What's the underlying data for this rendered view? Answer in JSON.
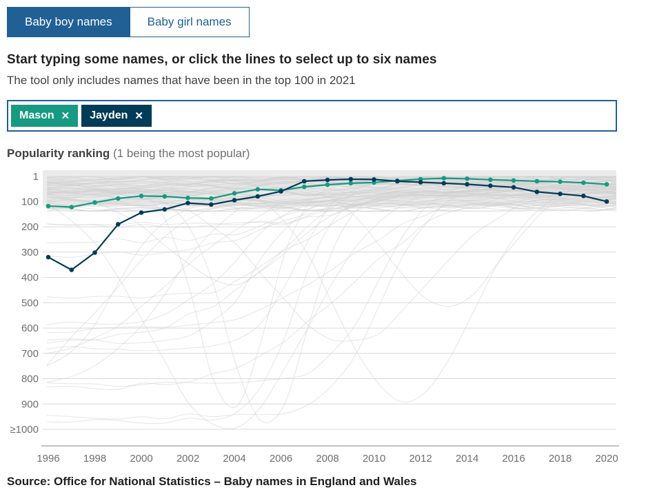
{
  "colors": {
    "accent_blue": "#206095",
    "mason_teal": "#169a81",
    "jayden_navy": "#003c57",
    "grid_gray": "#d9d9d9",
    "background_line_gray": "#cfcfcf",
    "axis_text_gray": "#6e6e6e"
  },
  "tabs": [
    {
      "label": "Baby boy names",
      "active": true
    },
    {
      "label": "Baby girl names",
      "active": false
    }
  ],
  "heading": "Start typing some names, or click the lines to select up to six names",
  "subheading": "The tool only includes names that have been in the top 100 in 2021",
  "name_picker": {
    "selected": [
      {
        "name": "Mason",
        "color": "#169a81",
        "remove_icon": "✕"
      },
      {
        "name": "Jayden",
        "color": "#003c57",
        "remove_icon": "✕"
      }
    ]
  },
  "chart_title": {
    "label": "Popularity ranking",
    "note": "(1 being the most popular)"
  },
  "chart_data": {
    "type": "line",
    "x": [
      1996,
      1997,
      1998,
      1999,
      2000,
      2001,
      2002,
      2003,
      2004,
      2005,
      2006,
      2007,
      2008,
      2009,
      2010,
      2011,
      2012,
      2013,
      2014,
      2015,
      2016,
      2017,
      2018,
      2019,
      2020
    ],
    "x_tick_labels": [
      "1996",
      "1998",
      "2000",
      "2002",
      "2004",
      "2006",
      "2008",
      "2010",
      "2012",
      "2014",
      "2016",
      "2018",
      "2020"
    ],
    "y_axis": {
      "inverted": true,
      "range": [
        1,
        1000
      ],
      "tick_values": [
        1,
        100,
        200,
        300,
        400,
        500,
        600,
        700,
        800,
        900,
        1000
      ],
      "tick_labels": [
        "1",
        "100",
        "200",
        "300",
        "400",
        "500",
        "600",
        "700",
        "800",
        "900",
        "≥1000"
      ]
    },
    "series": [
      {
        "name": "Mason",
        "color": "#169a81",
        "values": [
          118,
          122,
          104,
          88,
          78,
          80,
          86,
          88,
          68,
          52,
          56,
          42,
          34,
          28,
          25,
          18,
          12,
          8,
          10,
          14,
          17,
          20,
          22,
          26,
          32
        ]
      },
      {
        "name": "Jayden",
        "color": "#003c57",
        "values": [
          320,
          370,
          302,
          190,
          144,
          131,
          106,
          112,
          95,
          80,
          60,
          20,
          15,
          12,
          13,
          20,
          24,
          28,
          32,
          38,
          44,
          62,
          70,
          78,
          100
        ]
      }
    ],
    "background": {
      "note": "faint gray lines for all other top-100 names",
      "color": "#cfcfcf"
    }
  },
  "source": "Source: Office for National Statistics – Baby names in England and Wales"
}
